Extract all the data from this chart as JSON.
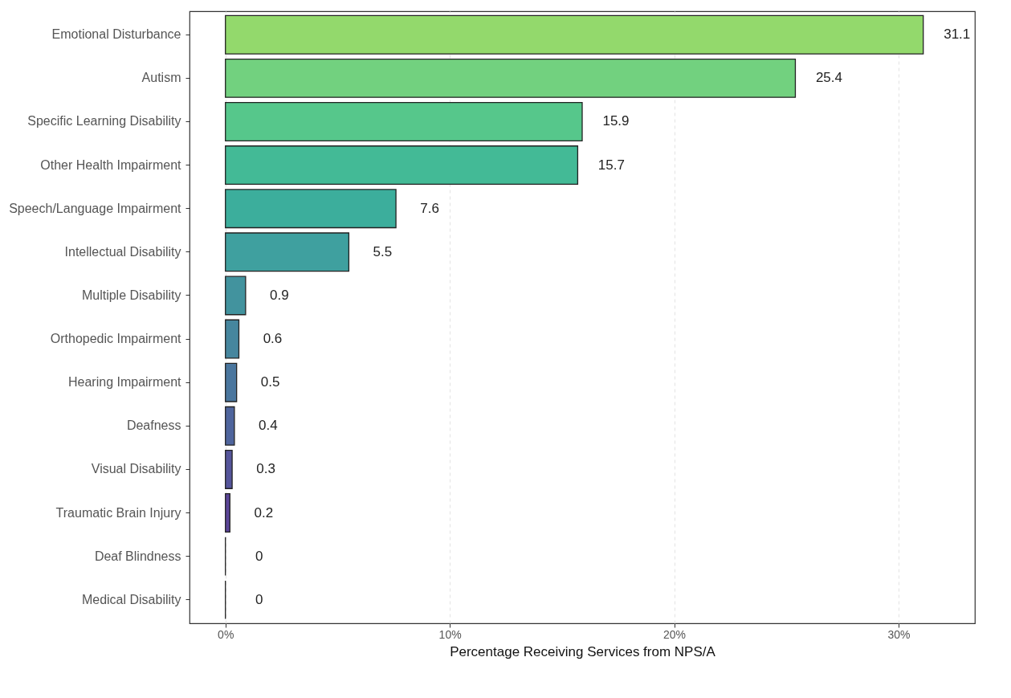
{
  "chart_data": {
    "type": "bar",
    "orientation": "horizontal",
    "xlabel": "Percentage Receiving Services from NPS/A",
    "categories": [
      "Emotional Disturbance",
      "Autism",
      "Specific Learning Disability",
      "Other Health Impairment",
      "Speech/Language Impairment",
      "Intellectual Disability",
      "Multiple Disability",
      "Orthopedic Impairment",
      "Hearing Impairment",
      "Deafness",
      "Visual Disability",
      "Traumatic Brain Injury",
      "Deaf Blindness",
      "Medical Disability"
    ],
    "values": [
      31.1,
      25.4,
      15.9,
      15.7,
      7.6,
      5.5,
      0.9,
      0.6,
      0.5,
      0.4,
      0.3,
      0.2,
      0,
      0
    ],
    "colors": [
      "#93d96c",
      "#72d17f",
      "#56c78b",
      "#43ba96",
      "#3cae9c",
      "#3fa09f",
      "#42939e",
      "#46869e",
      "#4a769e",
      "#4f659d",
      "#55559b",
      "#5b4598",
      "#222222",
      "#222222"
    ],
    "xlim": [
      -1.6,
      33.4
    ],
    "xticks": [
      {
        "value": 0,
        "label": "0%"
      },
      {
        "value": 10,
        "label": "10%"
      },
      {
        "value": 20,
        "label": "20%"
      },
      {
        "value": 30,
        "label": "30%"
      }
    ],
    "data_labels": true,
    "grid": "x"
  }
}
